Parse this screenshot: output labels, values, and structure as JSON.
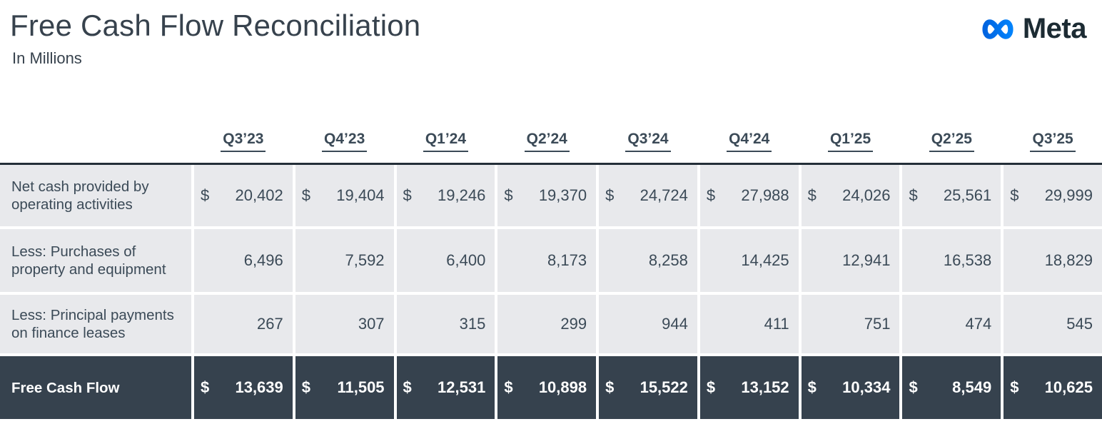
{
  "page": {
    "title": "Free Cash Flow Reconciliation",
    "subtitle": "In Millions"
  },
  "logo": {
    "wordmark": "Meta",
    "icon": "meta-infinity-icon",
    "gradient_start": "#0064E0",
    "gradient_end": "#0082FB",
    "wordmark_color": "#1C2B33"
  },
  "colors": {
    "title_color": "#37424D",
    "text_color": "#3B4A57",
    "cell_bg": "#E8E9EC",
    "dark_row_bg": "#36424E",
    "dark_row_text": "#FFFFFF",
    "table_top_border": "#232E38"
  },
  "table": {
    "currency_symbol": "$",
    "columns": [
      "Q3’23",
      "Q4’23",
      "Q1’24",
      "Q2’24",
      "Q3’24",
      "Q4’24",
      "Q1’25",
      "Q2’25",
      "Q3’25"
    ],
    "rows": [
      {
        "label": "Net cash provided by operating activities",
        "show_dollar": true,
        "emphasis": false,
        "values": [
          "20,402",
          "19,404",
          "19,246",
          "19,370",
          "24,724",
          "27,988",
          "24,026",
          "25,561",
          "29,999"
        ]
      },
      {
        "label": "Less: Purchases of property and equipment",
        "show_dollar": false,
        "emphasis": false,
        "values": [
          "6,496",
          "7,592",
          "6,400",
          "8,173",
          "8,258",
          "14,425",
          "12,941",
          "16,538",
          "18,829"
        ]
      },
      {
        "label": "Less: Principal payments on finance leases",
        "show_dollar": false,
        "emphasis": false,
        "values": [
          "267",
          "307",
          "315",
          "299",
          "944",
          "411",
          "751",
          "474",
          "545"
        ]
      },
      {
        "label": "Free Cash Flow",
        "show_dollar": true,
        "emphasis": true,
        "values": [
          "13,639",
          "11,505",
          "12,531",
          "10,898",
          "15,522",
          "13,152",
          "10,334",
          "8,549",
          "10,625"
        ]
      }
    ]
  }
}
